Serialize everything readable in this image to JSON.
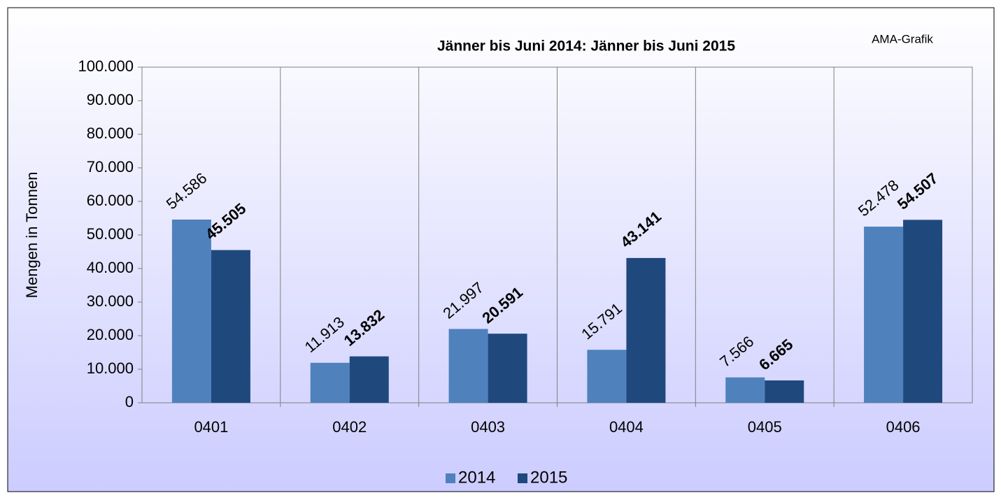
{
  "chart_data": {
    "type": "bar",
    "title": "Jänner bis Juni 2014: Jänner bis Juni 2015",
    "annotation": "AMA-Grafik",
    "y_label": "Mengen in Tonnen",
    "categories": [
      "0401",
      "0402",
      "0403",
      "0404",
      "0405",
      "0406"
    ],
    "series": [
      {
        "name": "2014",
        "color": "#4f81bd",
        "values": [
          54586,
          11913,
          21997,
          15791,
          7566,
          52478
        ],
        "value_labels": [
          "54.586",
          "11.913",
          "21.997",
          "15.791",
          "7.566",
          "52.478"
        ]
      },
      {
        "name": "2015",
        "color": "#1f497d",
        "values": [
          45505,
          13832,
          20591,
          43141,
          6665,
          54507
        ],
        "value_labels": [
          "45.505",
          "13.832",
          "20.591",
          "43.141",
          "6.665",
          "54.507"
        ]
      }
    ],
    "ylim": [
      0,
      100000
    ],
    "yticks": [
      {
        "value": 0,
        "label": "0"
      },
      {
        "value": 10000,
        "label": "10.000"
      },
      {
        "value": 20000,
        "label": "20.000"
      },
      {
        "value": 30000,
        "label": "30.000"
      },
      {
        "value": 40000,
        "label": "40.000"
      },
      {
        "value": 50000,
        "label": "50.000"
      },
      {
        "value": 60000,
        "label": "60.000"
      },
      {
        "value": 70000,
        "label": "70.000"
      },
      {
        "value": 80000,
        "label": "80.000"
      },
      {
        "value": 90000,
        "label": "90.000"
      },
      {
        "value": 100000,
        "label": "100.000"
      }
    ],
    "legend": "bottom"
  }
}
